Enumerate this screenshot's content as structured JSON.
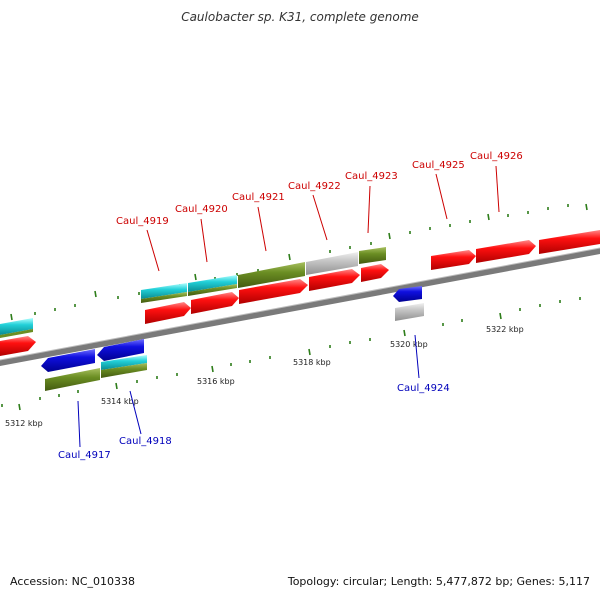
{
  "title": "Caulobacter sp. K31, complete genome",
  "footer": {
    "accession": "Accession: NC_010338",
    "stats": "Topology: circular; Length: 5,477,872 bp; Genes: 5,117"
  },
  "colors": {
    "forward_label": "#cc0000",
    "reverse_label": "#0000bb",
    "backbone": "#808080",
    "tick": "#2e7d1a",
    "red": "#ff1010",
    "blue": "#1010e0",
    "olive": "#6b8e23",
    "cyan": "#22d0d8",
    "gray": "#c0c0c0"
  },
  "ruler": [
    {
      "label": "5312 kbp"
    },
    {
      "label": "5314 kbp"
    },
    {
      "label": "5316 kbp"
    },
    {
      "label": "5318 kbp"
    },
    {
      "label": "5320 kbp"
    },
    {
      "label": "5322 kbp"
    }
  ],
  "genes_forward": [
    {
      "name": "Caul_4919"
    },
    {
      "name": "Caul_4920"
    },
    {
      "name": "Caul_4921"
    },
    {
      "name": "Caul_4922"
    },
    {
      "name": "Caul_4923"
    },
    {
      "name": "Caul_4925"
    },
    {
      "name": "Caul_4926"
    }
  ],
  "genes_reverse": [
    {
      "name": "Caul_4917"
    },
    {
      "name": "Caul_4918"
    },
    {
      "name": "Caul_4924"
    }
  ]
}
